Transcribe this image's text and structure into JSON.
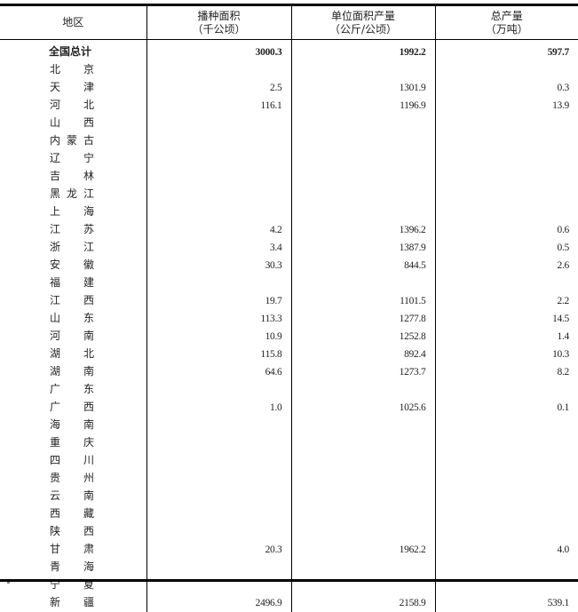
{
  "headers": [
    {
      "line1": "地区",
      "line2": ""
    },
    {
      "line1": "播种面积",
      "line2": "（千公顷）"
    },
    {
      "line1": "单位面积产量",
      "line2": "（公斤/公顷）"
    },
    {
      "line1": "总产量",
      "line2": "（万吨）"
    }
  ],
  "rows": [
    {
      "region": "全国总计",
      "area": "3000.3",
      "yield": "1992.2",
      "output": "597.7"
    },
    {
      "region": "北京",
      "area": "",
      "yield": "",
      "output": ""
    },
    {
      "region": "天津",
      "area": "2.5",
      "yield": "1301.9",
      "output": "0.3"
    },
    {
      "region": "河北",
      "area": "116.1",
      "yield": "1196.9",
      "output": "13.9"
    },
    {
      "region": "山西",
      "area": "",
      "yield": "",
      "output": ""
    },
    {
      "region": "内蒙古",
      "area": "",
      "yield": "",
      "output": ""
    },
    {
      "region": "辽宁",
      "area": "",
      "yield": "",
      "output": ""
    },
    {
      "region": "吉林",
      "area": "",
      "yield": "",
      "output": ""
    },
    {
      "region": "黑龙江",
      "area": "",
      "yield": "",
      "output": ""
    },
    {
      "region": "上海",
      "area": "",
      "yield": "",
      "output": ""
    },
    {
      "region": "江苏",
      "area": "4.2",
      "yield": "1396.2",
      "output": "0.6"
    },
    {
      "region": "浙江",
      "area": "3.4",
      "yield": "1387.9",
      "output": "0.5"
    },
    {
      "region": "安徽",
      "area": "30.3",
      "yield": "844.5",
      "output": "2.6"
    },
    {
      "region": "福建",
      "area": "",
      "yield": "",
      "output": ""
    },
    {
      "region": "江西",
      "area": "19.7",
      "yield": "1101.5",
      "output": "2.2"
    },
    {
      "region": "山东",
      "area": "113.3",
      "yield": "1277.8",
      "output": "14.5"
    },
    {
      "region": "河南",
      "area": "10.9",
      "yield": "1252.8",
      "output": "1.4"
    },
    {
      "region": "湖北",
      "area": "115.8",
      "yield": "892.4",
      "output": "10.3"
    },
    {
      "region": "湖南",
      "area": "64.6",
      "yield": "1273.7",
      "output": "8.2"
    },
    {
      "region": "广东",
      "area": "",
      "yield": "",
      "output": ""
    },
    {
      "region": "广西",
      "area": "1.0",
      "yield": "1025.6",
      "output": "0.1"
    },
    {
      "region": "海南",
      "area": "",
      "yield": "",
      "output": ""
    },
    {
      "region": "重庆",
      "area": "",
      "yield": "",
      "output": ""
    },
    {
      "region": "四川",
      "area": "",
      "yield": "",
      "output": ""
    },
    {
      "region": "贵州",
      "area": "",
      "yield": "",
      "output": ""
    },
    {
      "region": "云南",
      "area": "",
      "yield": "",
      "output": ""
    },
    {
      "region": "西藏",
      "area": "",
      "yield": "",
      "output": ""
    },
    {
      "region": "陕西",
      "area": "",
      "yield": "",
      "output": ""
    },
    {
      "region": "甘肃",
      "area": "20.3",
      "yield": "1962.2",
      "output": "4.0"
    },
    {
      "region": "青海",
      "area": "",
      "yield": "",
      "output": ""
    },
    {
      "region": "宁夏",
      "area": "",
      "yield": "",
      "output": ""
    },
    {
      "region": "新疆",
      "area": "2496.9",
      "yield": "2158.9",
      "output": "539.1"
    }
  ]
}
